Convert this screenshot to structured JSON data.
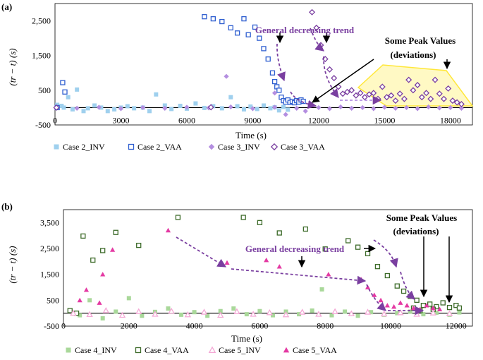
{
  "chart_data": [
    {
      "panel": "(a)",
      "type": "scatter",
      "xlabel": "Time (s)",
      "ylabel": "(tr − t) (s)",
      "xlim": [
        0,
        19000
      ],
      "ylim": [
        -500,
        3000
      ],
      "xticks": [
        0,
        3000,
        6000,
        9000,
        12000,
        15000,
        18000
      ],
      "yticks": [
        -500,
        500,
        1500,
        2500
      ],
      "series": [
        {
          "name": "Case 2_INV",
          "marker": "square-filled",
          "color": "#9fd0ee",
          "points": [
            [
              100,
              80
            ],
            [
              300,
              50
            ],
            [
              400,
              0
            ],
            [
              600,
              300
            ],
            [
              800,
              -50
            ],
            [
              1000,
              520
            ],
            [
              1300,
              -100
            ],
            [
              1500,
              -20
            ],
            [
              1800,
              60
            ],
            [
              2100,
              0
            ],
            [
              2400,
              -100
            ],
            [
              2700,
              -50
            ],
            [
              3000,
              0
            ],
            [
              3300,
              40
            ],
            [
              3600,
              -20
            ],
            [
              4000,
              0
            ],
            [
              4300,
              -100
            ],
            [
              4600,
              380
            ],
            [
              5000,
              60
            ],
            [
              5300,
              -40
            ],
            [
              5700,
              50
            ],
            [
              6000,
              -30
            ],
            [
              6400,
              120
            ],
            [
              6800,
              -10
            ],
            [
              7200,
              40
            ],
            [
              7600,
              -20
            ],
            [
              8000,
              300
            ],
            [
              8300,
              40
            ],
            [
              8600,
              -50
            ],
            [
              8900,
              30
            ],
            [
              9200,
              -40
            ],
            [
              9500,
              60
            ],
            [
              9800,
              -20
            ],
            [
              10000,
              10
            ],
            [
              10200,
              -80
            ],
            [
              10400,
              20
            ],
            [
              10600,
              -60
            ]
          ]
        },
        {
          "name": "Case 2_VAA",
          "marker": "square-open",
          "color": "#2f5fd0",
          "points": [
            [
              100,
              0
            ],
            [
              350,
              720
            ],
            [
              450,
              450
            ],
            [
              6800,
              2620
            ],
            [
              7200,
              2560
            ],
            [
              7600,
              2480
            ],
            [
              8000,
              2300
            ],
            [
              8300,
              2150
            ],
            [
              8600,
              2560
            ],
            [
              8800,
              2100
            ],
            [
              9100,
              2320
            ],
            [
              9300,
              2000
            ],
            [
              9500,
              1700
            ],
            [
              9700,
              1400
            ],
            [
              9900,
              1000
            ],
            [
              10000,
              750
            ],
            [
              10100,
              600
            ],
            [
              10200,
              500
            ],
            [
              10300,
              300
            ],
            [
              10400,
              200
            ],
            [
              10500,
              160
            ],
            [
              10600,
              220
            ],
            [
              10700,
              150
            ],
            [
              10800,
              180
            ],
            [
              10900,
              140
            ],
            [
              11000,
              200
            ],
            [
              11100,
              160
            ],
            [
              11200,
              220
            ],
            [
              11300,
              180
            ]
          ]
        },
        {
          "name": "Case 3_INV",
          "marker": "diamond-filled",
          "color": "#b48ee0",
          "points": [
            [
              0,
              0
            ],
            [
              1000,
              -20
            ],
            [
              2000,
              10
            ],
            [
              3000,
              -30
            ],
            [
              4000,
              0
            ],
            [
              5000,
              -20
            ],
            [
              6000,
              10
            ],
            [
              7000,
              -10
            ],
            [
              8000,
              20
            ],
            [
              9000,
              -30
            ],
            [
              10000,
              10
            ],
            [
              11000,
              -20
            ],
            [
              12000,
              0
            ],
            [
              12500,
              -30
            ],
            [
              13000,
              20
            ],
            [
              13500,
              -20
            ],
            [
              14000,
              0
            ],
            [
              14500,
              -30
            ],
            [
              15000,
              10
            ],
            [
              15500,
              -20
            ],
            [
              16000,
              0
            ],
            [
              16500,
              -30
            ],
            [
              17000,
              20
            ],
            [
              17500,
              -10
            ],
            [
              18000,
              0
            ],
            [
              18500,
              -20
            ],
            [
              7800,
              900
            ],
            [
              10000,
              420
            ],
            [
              10500,
              -200
            ],
            [
              11400,
              -100
            ]
          ]
        },
        {
          "name": "Case 3_VAA",
          "marker": "diamond-open",
          "color": "#7a3fa0",
          "points": [
            [
              0,
              0
            ],
            [
              7100,
              10
            ],
            [
              11700,
              2750
            ],
            [
              11900,
              2300
            ],
            [
              12100,
              1800
            ],
            [
              12300,
              1400
            ],
            [
              12500,
              1100
            ],
            [
              12700,
              850
            ],
            [
              12900,
              600
            ],
            [
              13100,
              400
            ],
            [
              13300,
              450
            ],
            [
              13500,
              500
            ],
            [
              13700,
              350
            ],
            [
              13900,
              420
            ],
            [
              14100,
              300
            ],
            [
              14300,
              380
            ],
            [
              14500,
              420
            ],
            [
              14700,
              250
            ],
            [
              14900,
              600
            ],
            [
              15100,
              300
            ],
            [
              15300,
              350
            ],
            [
              15500,
              200
            ],
            [
              15700,
              400
            ],
            [
              15900,
              250
            ],
            [
              16100,
              800
            ],
            [
              16300,
              500
            ],
            [
              16500,
              650
            ],
            [
              16700,
              300
            ],
            [
              16900,
              420
            ],
            [
              17100,
              250
            ],
            [
              17300,
              800
            ],
            [
              17500,
              400
            ],
            [
              17700,
              250
            ],
            [
              17900,
              550
            ],
            [
              18100,
              200
            ],
            [
              18300,
              150
            ],
            [
              18500,
              100
            ]
          ]
        }
      ],
      "annotations": [
        {
          "text": "General decreasing trend"
        },
        {
          "text": "Some Peak Values"
        },
        {
          "text": "(deviations)"
        }
      ],
      "legend": [
        "Case 2_INV",
        "Case 2_VAA",
        "Case 3_INV",
        "Case 3_VAA"
      ]
    },
    {
      "panel": "(b)",
      "type": "scatter",
      "xlabel": "Time (s)",
      "ylabel": "(tr − t) (s)",
      "xlim": [
        0,
        12500
      ],
      "ylim": [
        -500,
        4000
      ],
      "xticks": [
        0,
        2000,
        4000,
        6000,
        8000,
        10000,
        12000
      ],
      "yticks": [
        -500,
        500,
        1500,
        2500,
        3500
      ],
      "series": [
        {
          "name": "Case 4_INV",
          "marker": "square-filled",
          "color": "#a9d89a",
          "points": [
            [
              200,
              100
            ],
            [
              500,
              -80
            ],
            [
              800,
              500
            ],
            [
              1200,
              -200
            ],
            [
              1600,
              60
            ],
            [
              2000,
              580
            ],
            [
              2400,
              -100
            ],
            [
              2800,
              50
            ],
            [
              3200,
              180
            ],
            [
              3600,
              -60
            ],
            [
              4000,
              40
            ],
            [
              4400,
              -100
            ],
            [
              4800,
              80
            ],
            [
              5200,
              180
            ],
            [
              5600,
              -40
            ],
            [
              6000,
              80
            ],
            [
              6400,
              -80
            ],
            [
              6800,
              60
            ],
            [
              7200,
              -40
            ],
            [
              7600,
              100
            ],
            [
              7900,
              920
            ],
            [
              8200,
              -80
            ],
            [
              8600,
              60
            ],
            [
              9000,
              -100
            ],
            [
              9400,
              40
            ],
            [
              9800,
              -60
            ],
            [
              10200,
              0
            ],
            [
              10600,
              60
            ],
            [
              11000,
              -40
            ],
            [
              11400,
              20
            ],
            [
              11800,
              -60
            ],
            [
              12100,
              30
            ]
          ]
        },
        {
          "name": "Case 4_VAA",
          "marker": "square-open",
          "color": "#3d6b2a",
          "points": [
            [
              200,
              100
            ],
            [
              400,
              0
            ],
            [
              600,
              2980
            ],
            [
              900,
              2050
            ],
            [
              1200,
              2420
            ],
            [
              1600,
              3120
            ],
            [
              2300,
              2620
            ],
            [
              3500,
              3700
            ],
            [
              5500,
              3700
            ],
            [
              6000,
              3500
            ],
            [
              6600,
              3100
            ],
            [
              7400,
              3250
            ],
            [
              8000,
              2480
            ],
            [
              8700,
              2800
            ],
            [
              9000,
              2550
            ],
            [
              9300,
              2300
            ],
            [
              9600,
              1800
            ],
            [
              9900,
              1450
            ],
            [
              10200,
              1050
            ],
            [
              10400,
              850
            ],
            [
              10600,
              650
            ],
            [
              10800,
              500
            ],
            [
              11000,
              300
            ],
            [
              11200,
              350
            ],
            [
              11400,
              250
            ],
            [
              11600,
              400
            ],
            [
              11800,
              220
            ],
            [
              12000,
              300
            ],
            [
              12100,
              200
            ],
            [
              11300,
              150
            ],
            [
              10900,
              100
            ],
            [
              10700,
              200
            ]
          ]
        },
        {
          "name": "Case 5_INV",
          "marker": "triangle-open",
          "color": "#f4a9d6",
          "points": [
            [
              300,
              0
            ],
            [
              800,
              -50
            ],
            [
              1300,
              100
            ],
            [
              1800,
              -80
            ],
            [
              2300,
              60
            ],
            [
              2800,
              -40
            ],
            [
              3300,
              80
            ],
            [
              3800,
              -60
            ],
            [
              4300,
              40
            ],
            [
              4800,
              -80
            ],
            [
              5300,
              60
            ],
            [
              5800,
              -40
            ],
            [
              6300,
              20
            ],
            [
              6800,
              -60
            ],
            [
              7300,
              40
            ],
            [
              7800,
              -40
            ],
            [
              8300,
              60
            ],
            [
              8800,
              -20
            ],
            [
              9300,
              40
            ],
            [
              9800,
              -30
            ],
            [
              10300,
              20
            ],
            [
              10800,
              -40
            ],
            [
              11300,
              10
            ],
            [
              11800,
              -20
            ]
          ]
        },
        {
          "name": "Case 5_VAA",
          "marker": "triangle-filled",
          "color": "#e43aa3",
          "points": [
            [
              500,
              500
            ],
            [
              700,
              900
            ],
            [
              1100,
              400
            ],
            [
              1200,
              1500
            ],
            [
              1500,
              2450
            ],
            [
              3200,
              3200
            ],
            [
              5000,
              1950
            ],
            [
              6200,
              2050
            ],
            [
              6600,
              1800
            ],
            [
              8100,
              1500
            ],
            [
              9100,
              1300
            ],
            [
              9300,
              1000
            ],
            [
              9500,
              700
            ],
            [
              9700,
              500
            ],
            [
              9900,
              300
            ],
            [
              10100,
              250
            ],
            [
              10300,
              400
            ],
            [
              10500,
              300
            ],
            [
              10700,
              200
            ],
            [
              10900,
              150
            ],
            [
              11100,
              300
            ],
            [
              11300,
              200
            ],
            [
              11500,
              150
            ]
          ]
        }
      ],
      "annotations": [
        {
          "text": "Some Peak Values"
        },
        {
          "text": "(deviations)"
        },
        {
          "text": "General decreasing trend"
        }
      ],
      "legend": [
        "Case 4_INV",
        "Case 4_VAA",
        "Case 5_INV",
        "Case 5_VAA"
      ]
    }
  ]
}
